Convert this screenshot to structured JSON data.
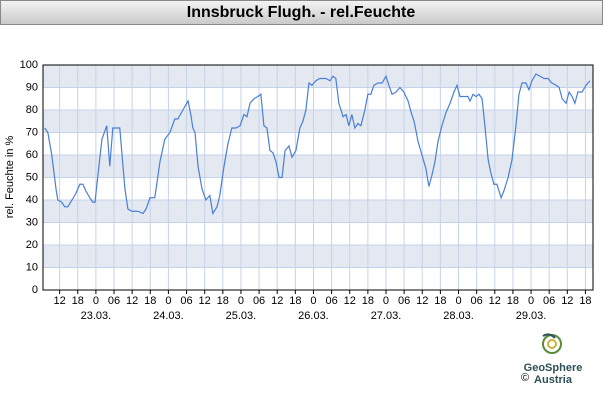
{
  "chart_data": {
    "type": "line",
    "title": "Innsbruck Flugh. - rel.Feuchte",
    "y_label": "rel. Feuchte in %",
    "ylim": [
      0,
      100
    ],
    "yticks": [
      0,
      10,
      20,
      30,
      40,
      50,
      60,
      70,
      80,
      90,
      100
    ],
    "xlim": [
      -17.5,
      164.5
    ],
    "xticks": [
      {
        "value": -12,
        "label": "12"
      },
      {
        "value": -6,
        "label": "18"
      },
      {
        "value": 0,
        "label": "0"
      },
      {
        "value": 6,
        "label": "06"
      },
      {
        "value": 12,
        "label": "12"
      },
      {
        "value": 18,
        "label": "18"
      },
      {
        "value": 24,
        "label": "0"
      },
      {
        "value": 30,
        "label": "06"
      },
      {
        "value": 36,
        "label": "12"
      },
      {
        "value": 42,
        "label": "18"
      },
      {
        "value": 48,
        "label": "0"
      },
      {
        "value": 54,
        "label": "06"
      },
      {
        "value": 60,
        "label": "12"
      },
      {
        "value": 66,
        "label": "18"
      },
      {
        "value": 72,
        "label": "0"
      },
      {
        "value": 78,
        "label": "06"
      },
      {
        "value": 84,
        "label": "12"
      },
      {
        "value": 90,
        "label": "18"
      },
      {
        "value": 96,
        "label": "0"
      },
      {
        "value": 102,
        "label": "06"
      },
      {
        "value": 108,
        "label": "12"
      },
      {
        "value": 114,
        "label": "18"
      },
      {
        "value": 120,
        "label": "0"
      },
      {
        "value": 126,
        "label": "06"
      },
      {
        "value": 132,
        "label": "12"
      },
      {
        "value": 138,
        "label": "18"
      },
      {
        "value": 144,
        "label": "0"
      },
      {
        "value": 150,
        "label": "06"
      },
      {
        "value": 156,
        "label": "12"
      },
      {
        "value": 162,
        "label": "18"
      }
    ],
    "date_ticks": [
      {
        "value": 0,
        "label": "23.03."
      },
      {
        "value": 24,
        "label": "24.03."
      },
      {
        "value": 48,
        "label": "25.03."
      },
      {
        "value": 72,
        "label": "26.03."
      },
      {
        "value": 96,
        "label": "27.03."
      },
      {
        "value": 120,
        "label": "28.03."
      },
      {
        "value": 144,
        "label": "29.03."
      }
    ],
    "grid": true,
    "band_color": "#e3e8f1",
    "grid_color": "#c5d3e8",
    "color": "#4a7fd6",
    "x": [
      -16.9,
      -15.9,
      -14.6,
      -13.2,
      -12.6,
      -11.3,
      -10.3,
      -9.3,
      -7.9,
      -6.6,
      -5.3,
      -4.3,
      -3.3,
      -2.0,
      -1.0,
      -0.3,
      1.0,
      2.0,
      3.6,
      4.6,
      5.6,
      7.9,
      9.6,
      10.6,
      11.9,
      13.9,
      15.6,
      16.6,
      17.9,
      19.5,
      21.2,
      22.8,
      24.5,
      26.1,
      27.1,
      28.8,
      30.5,
      31.4,
      32.1,
      32.8,
      33.8,
      35.1,
      36.4,
      37.7,
      38.7,
      40.1,
      41.0,
      42.4,
      43.7,
      45.0,
      46.3,
      47.7,
      49.0,
      50.0,
      51.0,
      52.3,
      53.6,
      54.6,
      55.6,
      56.6,
      57.6,
      58.6,
      59.6,
      60.6,
      61.6,
      62.6,
      63.9,
      64.9,
      66.2,
      67.5,
      68.5,
      69.5,
      70.5,
      71.5,
      72.8,
      74.1,
      76.1,
      77.5,
      78.4,
      79.4,
      80.4,
      81.8,
      82.8,
      83.7,
      84.7,
      85.7,
      86.7,
      87.7,
      89.0,
      90.0,
      91.0,
      92.0,
      93.3,
      94.7,
      96.0,
      96.7,
      98.0,
      99.3,
      100.6,
      101.9,
      103.3,
      104.3,
      105.3,
      106.6,
      107.9,
      109.2,
      110.2,
      111.2,
      112.2,
      113.2,
      114.5,
      115.9,
      117.2,
      118.5,
      119.5,
      120.5,
      121.8,
      123.1,
      123.8,
      124.8,
      125.8,
      126.8,
      127.8,
      128.8,
      129.8,
      130.7,
      131.7,
      132.7,
      134.1,
      135.0,
      136.4,
      137.7,
      139.0,
      140.0,
      141.0,
      142.3,
      143.3,
      144.3,
      145.6,
      147.0,
      148.3,
      149.6,
      150.9,
      152.3,
      153.3,
      154.3,
      155.6,
      156.6,
      157.6,
      158.5,
      159.5,
      160.9,
      162.2,
      163.5
    ],
    "values": [
      72,
      70,
      60,
      45,
      40,
      39,
      37,
      37,
      40,
      43,
      47,
      47,
      44,
      41,
      39,
      39,
      55,
      67,
      73,
      55,
      72,
      72,
      45,
      36,
      35,
      35,
      34,
      36,
      41,
      41,
      57,
      67,
      70,
      76,
      76,
      80,
      84,
      78,
      72,
      70,
      55,
      45,
      40,
      42,
      34,
      37,
      42,
      55,
      65,
      72,
      72,
      73,
      78,
      77,
      83,
      85,
      86,
      87,
      73,
      72,
      62,
      61,
      57,
      50,
      50,
      62,
      64,
      59,
      62,
      72,
      75,
      80,
      92,
      91,
      93,
      94,
      94,
      93,
      95,
      94,
      83,
      77,
      78,
      73,
      78,
      72,
      74,
      73,
      80,
      87,
      87,
      91,
      92,
      92,
      95,
      92,
      87,
      88,
      90,
      88,
      84,
      79,
      75,
      66,
      60,
      54,
      46,
      51,
      57,
      66,
      73,
      79,
      83,
      88,
      91,
      86,
      86,
      86,
      84,
      87,
      86,
      87,
      85,
      72,
      58,
      52,
      47,
      47,
      41,
      44,
      50,
      58,
      73,
      87,
      92,
      92,
      89,
      93,
      96,
      95,
      94,
      94,
      92,
      91,
      90,
      85,
      83,
      88,
      86,
      83,
      88,
      88,
      91,
      93
    ]
  },
  "footer": {
    "copyright": "©",
    "brand": "GeoSphere",
    "brand_sub": "Austria"
  }
}
